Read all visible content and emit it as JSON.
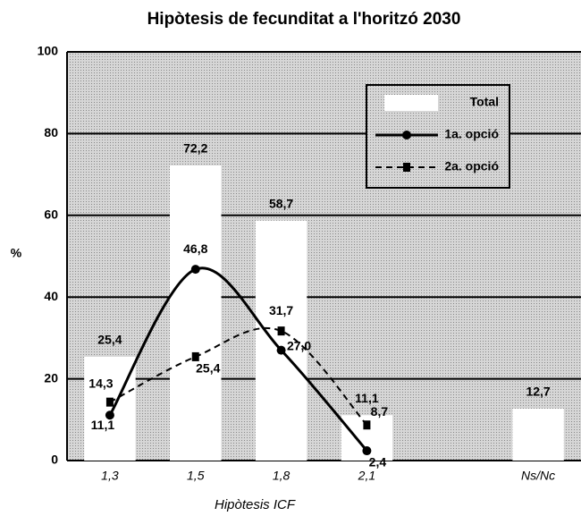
{
  "chart_data": {
    "type": "bar_line",
    "title": "Hipòtesis de fecunditat a l'horitzó 2030",
    "y_label": "%",
    "x_label": "Hipòtesis ICF",
    "categories": [
      "1,3",
      "1,5",
      "1,8",
      "2,1",
      null,
      "Ns/Nc"
    ],
    "ylim": [
      0,
      100
    ],
    "yticks": [
      0,
      20,
      40,
      60,
      80,
      100
    ],
    "grid": true,
    "legend": "top-right",
    "series": [
      {
        "name": "Total",
        "kind": "bar",
        "color": "#ffffff",
        "values": [
          25.4,
          72.2,
          58.7,
          11.1,
          null,
          12.7
        ],
        "value_labels": [
          "25,4",
          "72,2",
          "58,7",
          "11,1",
          null,
          "12,7"
        ]
      },
      {
        "name": "1a. opció",
        "kind": "line",
        "color": "#000000",
        "values": [
          11.1,
          46.8,
          27.0,
          2.4,
          null,
          null
        ],
        "value_labels": [
          "11,1",
          "46,8",
          "27,0",
          "2,4",
          null,
          null
        ]
      },
      {
        "name": "2a. opció",
        "kind": "dashed",
        "color": "#000000",
        "values": [
          14.3,
          25.4,
          31.7,
          8.7,
          null,
          null
        ],
        "value_labels": [
          "14,3",
          "25,4",
          "31,7",
          "8,7",
          null,
          null
        ]
      }
    ]
  }
}
